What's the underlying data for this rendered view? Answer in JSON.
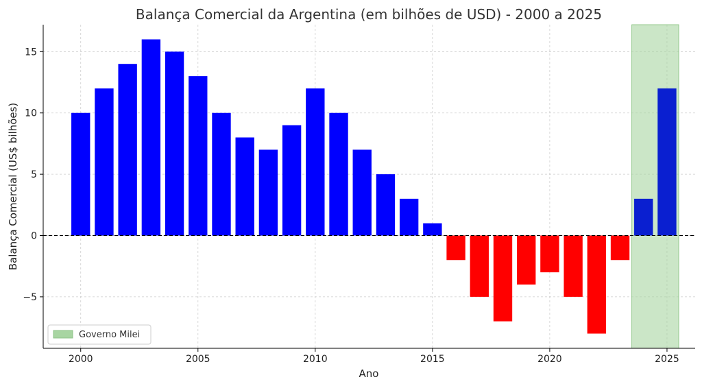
{
  "chart_data": {
    "type": "bar",
    "title": "Balança Comercial da Argentina (em bilhões de USD) - 2000 a 2025",
    "xlabel": "Ano",
    "ylabel": "Balança Comercial (US$ bilhões)",
    "x": [
      2000,
      2001,
      2002,
      2003,
      2004,
      2005,
      2006,
      2007,
      2008,
      2009,
      2010,
      2011,
      2012,
      2013,
      2014,
      2015,
      2016,
      2017,
      2018,
      2019,
      2020,
      2021,
      2022,
      2023,
      2024,
      2025
    ],
    "values": [
      10,
      12,
      14,
      16,
      15,
      13,
      10,
      8,
      7,
      9,
      12,
      10,
      7,
      5,
      3,
      1,
      -2,
      -5,
      -7,
      -4,
      -3,
      -5,
      -8,
      -2,
      3,
      12
    ],
    "xlim": [
      1998.4,
      2026.2
    ],
    "ylim": [
      -9.2,
      17.2
    ],
    "x_ticks": [
      2000,
      2005,
      2010,
      2015,
      2020,
      2025
    ],
    "x_tick_labels": [
      "2000",
      "2005",
      "2010",
      "2015",
      "2020",
      "2025"
    ],
    "y_ticks": [
      -5,
      0,
      5,
      10,
      15
    ],
    "y_tick_labels": [
      "−5",
      "0",
      "5",
      "10",
      "15"
    ],
    "grid": true,
    "zero_line": true,
    "colors": {
      "positive": "#0000ff",
      "negative": "#ff0000",
      "highlight_span": "#a8d5a2"
    },
    "highlight": {
      "from": 2023.5,
      "to": 2025.5,
      "label": "Governo Milei"
    },
    "legend": {
      "placement": "bottom-left",
      "entries": [
        "Governo Milei"
      ]
    }
  }
}
